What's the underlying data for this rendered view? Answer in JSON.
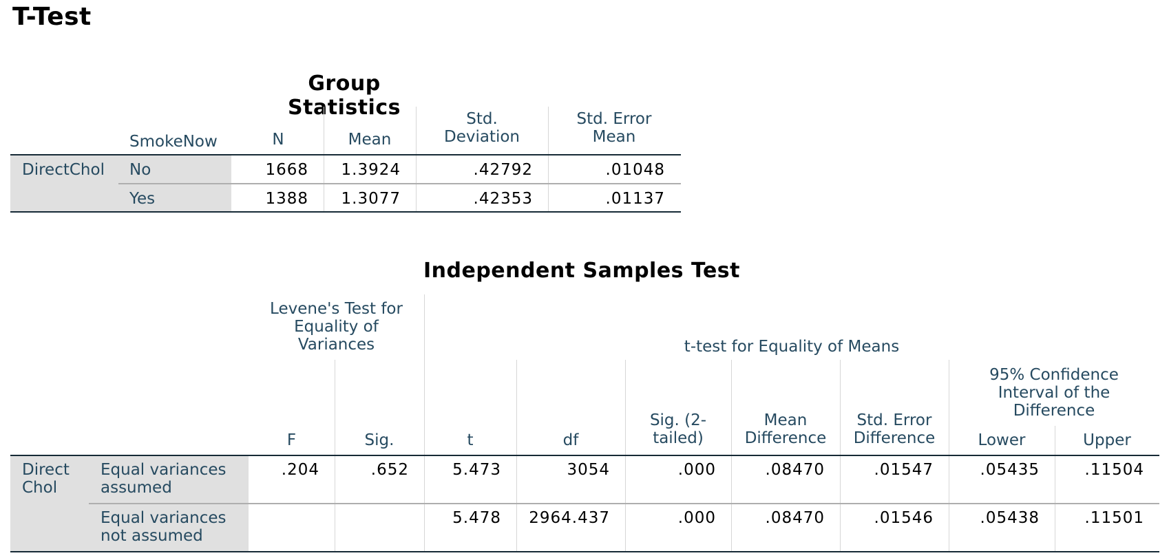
{
  "page_title": "T-Test",
  "group_stats": {
    "title": "Group Statistics",
    "headers": {
      "group": "SmokeNow",
      "n": "N",
      "mean": "Mean",
      "sd_1": "Std.",
      "sd_2": "Deviation",
      "se_1": "Std. Error",
      "se_2": "Mean"
    },
    "variable": "DirectChol",
    "rows": [
      {
        "group": "No",
        "n": "1668",
        "mean": "1.3924",
        "sd": ".42792",
        "se": ".01048"
      },
      {
        "group": "Yes",
        "n": "1388",
        "mean": "1.3077",
        "sd": ".42353",
        "se": ".01137"
      }
    ]
  },
  "ind_test": {
    "title": "Independent Samples Test",
    "levene_header": [
      "Levene's Test for",
      "Equality of",
      "Variances"
    ],
    "ttest_header": "t-test for Equality of Means",
    "ci_header": [
      "95% Confidence",
      "Interval of the",
      "Difference"
    ],
    "cols": {
      "f": "F",
      "sig": "Sig.",
      "t": "t",
      "df": "df",
      "sig2_1": "Sig. (2-",
      "sig2_2": "tailed)",
      "md_1": "Mean",
      "md_2": "Difference",
      "sed_1": "Std. Error",
      "sed_2": "Difference",
      "lower": "Lower",
      "upper": "Upper"
    },
    "variable": [
      "Direct",
      "Chol"
    ],
    "rows": [
      {
        "label_1": "Equal variances",
        "label_2": "assumed",
        "f": ".204",
        "sig": ".652",
        "t": "5.473",
        "df": "3054",
        "sig2": ".000",
        "md": ".08470",
        "sed": ".01547",
        "lower": ".05435",
        "upper": ".11504"
      },
      {
        "label_1": "Equal variances",
        "label_2": "not assumed",
        "f": "",
        "sig": "",
        "t": "5.478",
        "df": "2964.437",
        "sig2": ".000",
        "md": ".08470",
        "sed": ".01546",
        "lower": ".05438",
        "upper": ".11501"
      }
    ]
  }
}
